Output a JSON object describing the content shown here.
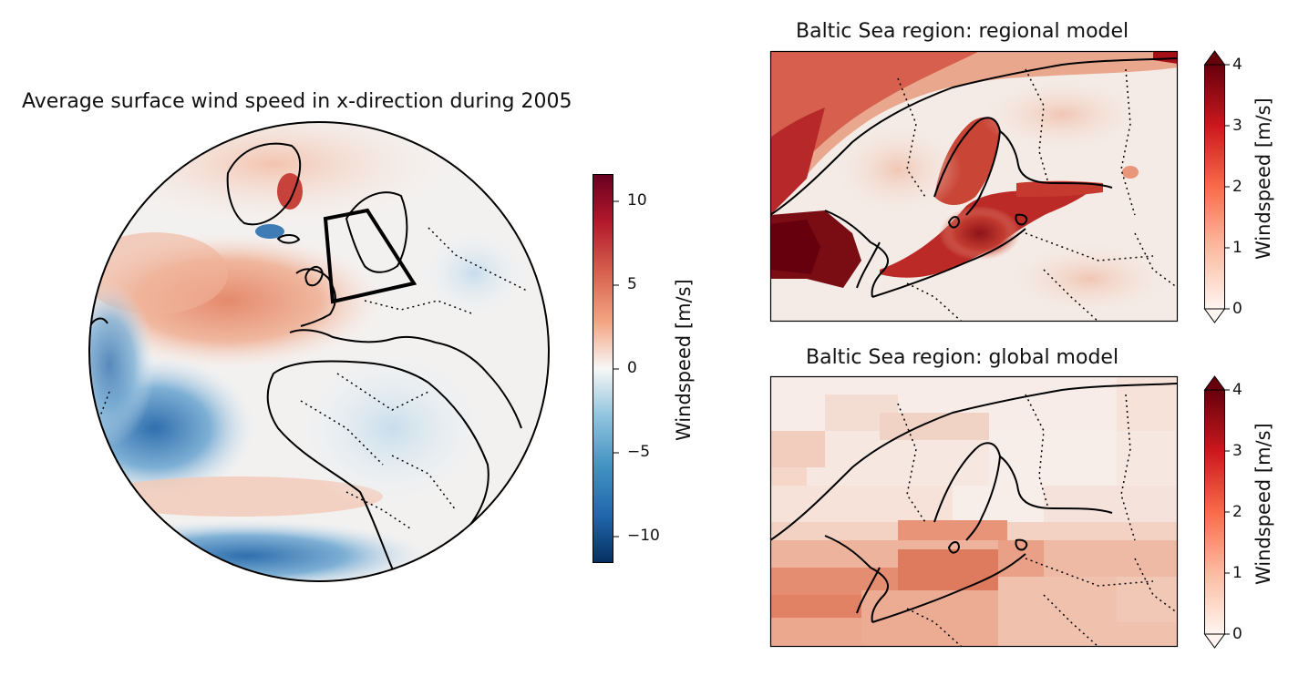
{
  "global_map": {
    "title": "Average surface wind speed in x-direction during 2005",
    "colorbar": {
      "label": "Windspeed [m/s]",
      "ticks": [
        "10",
        "5",
        "0",
        "−5",
        "−10"
      ],
      "tick_values": [
        10,
        5,
        0,
        -5,
        -10
      ],
      "range": [
        -11.5,
        11.5
      ],
      "colormap": "RdBu_r",
      "colors": {
        "max": "#67001f",
        "mid": "#f7f7f7",
        "min": "#053061"
      }
    }
  },
  "regional_map": {
    "title": "Baltic Sea region: regional model",
    "colorbar": {
      "label": "Windspeed [m/s]",
      "ticks": [
        "4",
        "3",
        "2",
        "1",
        "0"
      ],
      "tick_values": [
        4,
        3,
        2,
        1,
        0
      ],
      "range": [
        0,
        4
      ],
      "colormap": "Reds",
      "extend": "both"
    }
  },
  "global_model_map": {
    "title": "Baltic Sea region: global model",
    "colorbar": {
      "label": "Windspeed [m/s]",
      "ticks": [
        "4",
        "3",
        "2",
        "1",
        "0"
      ],
      "tick_values": [
        4,
        3,
        2,
        1,
        0
      ],
      "range": [
        0,
        4
      ],
      "colormap": "Reds",
      "extend": "both"
    }
  }
}
